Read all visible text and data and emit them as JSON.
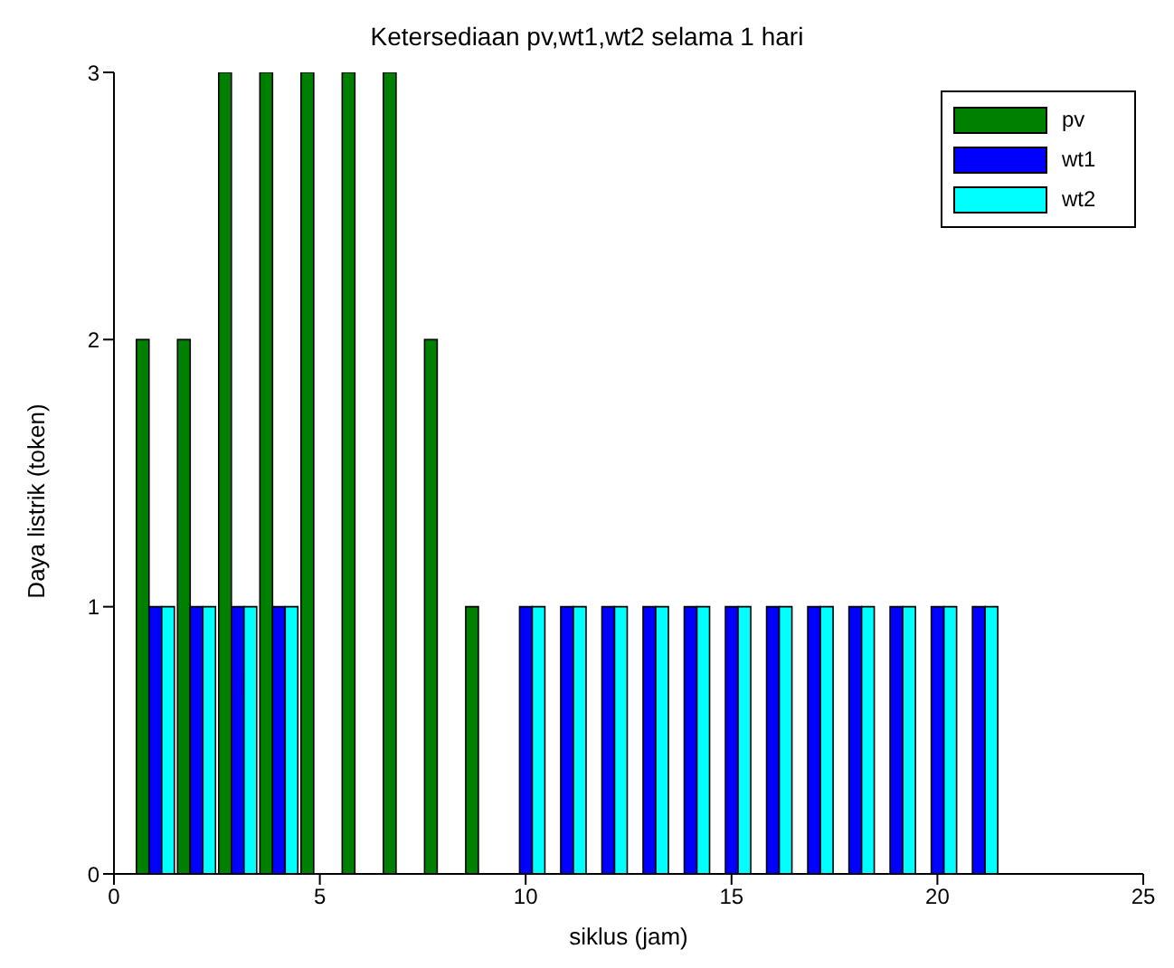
{
  "chart_data": {
    "type": "bar",
    "title": "Ketersediaan pv,wt1,wt2 selama 1 hari",
    "xlabel": "siklus (jam)",
    "ylabel": "Daya listrik (token)",
    "x": [
      1,
      2,
      3,
      4,
      5,
      6,
      7,
      8,
      9,
      10,
      11,
      12,
      13,
      14,
      15,
      16,
      17,
      18,
      19,
      20,
      21
    ],
    "series": [
      {
        "name": "pv",
        "color": "#008000",
        "values": [
          2,
          2,
          3,
          3,
          3,
          3,
          3,
          2,
          1,
          0,
          0,
          0,
          0,
          0,
          0,
          0,
          0,
          0,
          0,
          0,
          0
        ]
      },
      {
        "name": "wt1",
        "color": "#0000ff",
        "values": [
          1,
          1,
          1,
          1,
          0,
          0,
          0,
          0,
          0,
          1,
          1,
          1,
          1,
          1,
          1,
          1,
          1,
          1,
          1,
          1,
          1
        ]
      },
      {
        "name": "wt2",
        "color": "#00ffff",
        "values": [
          1,
          1,
          1,
          1,
          0,
          0,
          0,
          0,
          0,
          1,
          1,
          1,
          1,
          1,
          1,
          1,
          1,
          1,
          1,
          1,
          1
        ]
      }
    ],
    "xlim": [
      0,
      25
    ],
    "xticks": [
      0,
      5,
      10,
      15,
      20,
      25
    ],
    "ylim": [
      0,
      3
    ],
    "yticks": [
      0,
      1,
      2,
      3
    ],
    "legend": "top right"
  }
}
